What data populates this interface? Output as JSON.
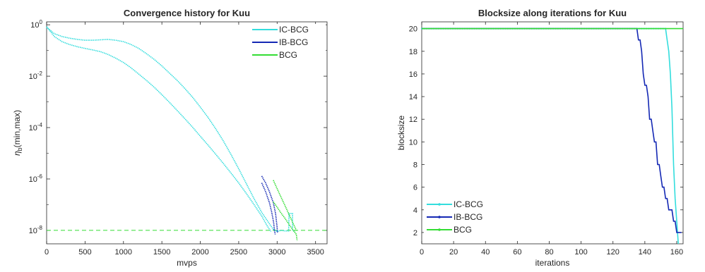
{
  "chart_data": [
    {
      "type": "line",
      "title": "Convergence history for Kuu",
      "xlabel": "mvps",
      "ylabel": "η_b (min,max)",
      "ylabel_main": "η",
      "ylabel_sub": "b",
      "ylabel_tail": "(min,max)",
      "xlim": [
        0,
        3650
      ],
      "ylim": [
        3e-09,
        1.3
      ],
      "yscale": "log",
      "grid": false,
      "legend_position": "top-right",
      "x_ticks": [
        "0",
        "500",
        "1000",
        "1500",
        "2000",
        "2500",
        "3000",
        "3500"
      ],
      "x_tick_values": [
        0,
        500,
        1000,
        1500,
        2000,
        2500,
        3000,
        3500
      ],
      "y_ticks": [
        {
          "base": "10",
          "exp": "-8",
          "value": 1e-08
        },
        {
          "base": "10",
          "exp": "-6",
          "value": 1e-06
        },
        {
          "base": "10",
          "exp": "-4",
          "value": 0.0001
        },
        {
          "base": "10",
          "exp": "-2",
          "value": 0.01
        },
        {
          "base": "10",
          "exp": "0",
          "value": 1
        }
      ],
      "threshold": {
        "y": 1e-08,
        "color": "#33dd33"
      },
      "series": [
        {
          "name": "IC-BCG",
          "color": "#33dddd",
          "lines": [
            [
              [
                0,
                0.8
              ],
              [
                100,
                0.45
              ],
              [
                200,
                0.35
              ],
              [
                300,
                0.3
              ],
              [
                400,
                0.27
              ],
              [
                500,
                0.25
              ],
              [
                600,
                0.25
              ],
              [
                700,
                0.26
              ],
              [
                800,
                0.27
              ],
              [
                900,
                0.25
              ],
              [
                1000,
                0.22
              ],
              [
                1100,
                0.17
              ],
              [
                1200,
                0.12
              ],
              [
                1300,
                0.075
              ],
              [
                1400,
                0.045
              ],
              [
                1500,
                0.025
              ],
              [
                1600,
                0.013
              ],
              [
                1700,
                0.0068
              ],
              [
                1800,
                0.0033
              ],
              [
                1900,
                0.0015
              ],
              [
                2000,
                0.00063
              ],
              [
                2100,
                0.00025
              ],
              [
                2200,
                9e-05
              ],
              [
                2300,
                3e-05
              ],
              [
                2400,
                9e-06
              ],
              [
                2500,
                2.5e-06
              ],
              [
                2600,
                6.5e-07
              ],
              [
                2700,
                1.7e-07
              ],
              [
                2800,
                5e-08
              ],
              [
                2900,
                1.8e-08
              ],
              [
                2950,
                1.1e-08
              ],
              [
                3000,
                9e-09
              ],
              [
                3050,
                1e-08
              ],
              [
                3100,
                9.5e-09
              ],
              [
                3150,
                9.5e-09
              ],
              [
                3155,
                4.5e-08
              ],
              [
                3180,
                4.5e-08
              ],
              [
                3200,
                4.5e-08
              ],
              [
                3200,
                1e-08
              ],
              [
                3230,
                9e-09
              ]
            ],
            [
              [
                0,
                0.85
              ],
              [
                100,
                0.35
              ],
              [
                200,
                0.22
              ],
              [
                300,
                0.17
              ],
              [
                400,
                0.14
              ],
              [
                500,
                0.12
              ],
              [
                600,
                0.105
              ],
              [
                700,
                0.09
              ],
              [
                800,
                0.07
              ],
              [
                900,
                0.05
              ],
              [
                1000,
                0.034
              ],
              [
                1100,
                0.021
              ],
              [
                1200,
                0.012
              ],
              [
                1300,
                0.0068
              ],
              [
                1400,
                0.0037
              ],
              [
                1500,
                0.0019
              ],
              [
                1600,
                0.00095
              ],
              [
                1700,
                0.00046
              ],
              [
                1800,
                0.00022
              ],
              [
                1900,
                0.000103
              ],
              [
                2000,
                4.6e-05
              ],
              [
                2100,
                2.1e-05
              ],
              [
                2200,
                9.2e-06
              ],
              [
                2300,
                4e-06
              ],
              [
                2400,
                1.7e-06
              ],
              [
                2500,
                7e-07
              ],
              [
                2600,
                2.7e-07
              ],
              [
                2700,
                1e-07
              ],
              [
                2800,
                3.6e-08
              ],
              [
                2870,
                1.5e-08
              ],
              [
                2920,
                9e-09
              ]
            ]
          ]
        },
        {
          "name": "IB-BCG",
          "color": "#1428b4",
          "lines": [
            [
              [
                2800,
                1.3e-06
              ],
              [
                2850,
                7e-07
              ],
              [
                2900,
                3.2e-07
              ],
              [
                2950,
                1.2e-07
              ],
              [
                2980,
                4.5e-08
              ],
              [
                3000,
                1.3e-08
              ],
              [
                3005,
                8e-09
              ]
            ],
            [
              [
                2800,
                7e-07
              ],
              [
                2850,
                3.2e-07
              ],
              [
                2900,
                1.2e-07
              ],
              [
                2930,
                5e-08
              ],
              [
                2955,
                2e-08
              ],
              [
                2965,
                1e-08
              ],
              [
                2975,
                7e-09
              ]
            ]
          ]
        },
        {
          "name": "BCG",
          "color": "#33dd33",
          "lines": [
            [
              [
                2950,
                9e-07
              ],
              [
                3000,
                4.2e-07
              ],
              [
                3050,
                2e-07
              ],
              [
                3100,
                9.5e-08
              ],
              [
                3150,
                4.5e-08
              ],
              [
                3200,
                2.1e-08
              ],
              [
                3250,
                1e-08
              ]
            ],
            [
              [
                2950,
                1.3e-07
              ],
              [
                3000,
                8e-08
              ],
              [
                3050,
                4.8e-08
              ],
              [
                3100,
                3e-08
              ],
              [
                3150,
                1.8e-08
              ],
              [
                3200,
                1.1e-08
              ],
              [
                3250,
                7e-09
              ],
              [
                3260,
                4e-09
              ]
            ]
          ]
        }
      ]
    },
    {
      "type": "line",
      "title": "Blocksize along iterations for Kuu",
      "xlabel": "iterations",
      "ylabel": "blocksize",
      "xlim": [
        0,
        164
      ],
      "ylim": [
        1,
        20.6
      ],
      "yscale": "linear",
      "grid": false,
      "legend_position": "bottom-left",
      "x_ticks": [
        "0",
        "20",
        "40",
        "60",
        "80",
        "100",
        "120",
        "140",
        "160"
      ],
      "x_tick_values": [
        0,
        20,
        40,
        60,
        80,
        100,
        120,
        140,
        160
      ],
      "y_ticks": [
        "2",
        "4",
        "6",
        "8",
        "10",
        "12",
        "14",
        "16",
        "18",
        "20"
      ],
      "y_tick_values": [
        2,
        4,
        6,
        8,
        10,
        12,
        14,
        16,
        18,
        20
      ],
      "series": [
        {
          "name": "IC-BCG",
          "color": "#33dddd",
          "points": [
            [
              0,
              20
            ],
            [
              152,
              20
            ],
            [
              153,
              20
            ],
            [
              154,
              19
            ],
            [
              155,
              18
            ],
            [
              156,
              16
            ],
            [
              157,
              13
            ],
            [
              158,
              8
            ],
            [
              159,
              5
            ],
            [
              160,
              3
            ],
            [
              161,
              1
            ]
          ]
        },
        {
          "name": "IB-BCG",
          "color": "#1428b4",
          "points": [
            [
              0,
              20
            ],
            [
              135,
              20
            ],
            [
              136,
              19
            ],
            [
              137,
              19
            ],
            [
              138,
              18
            ],
            [
              139,
              16
            ],
            [
              140,
              15
            ],
            [
              141,
              15
            ],
            [
              142,
              14
            ],
            [
              143,
              12
            ],
            [
              144,
              12
            ],
            [
              145,
              11
            ],
            [
              146,
              10
            ],
            [
              147,
              10
            ],
            [
              148,
              8
            ],
            [
              149,
              8
            ],
            [
              150,
              7
            ],
            [
              151,
              6
            ],
            [
              152,
              6
            ],
            [
              153,
              5
            ],
            [
              154,
              5
            ],
            [
              155,
              4
            ],
            [
              156,
              4
            ],
            [
              157,
              4
            ],
            [
              158,
              3
            ],
            [
              159,
              3
            ],
            [
              160,
              2
            ],
            [
              161,
              2
            ],
            [
              162,
              2
            ],
            [
              163,
              2
            ]
          ]
        },
        {
          "name": "BCG",
          "color": "#33dd33",
          "points": [
            [
              0,
              20
            ],
            [
              164,
              20
            ]
          ]
        }
      ]
    }
  ]
}
